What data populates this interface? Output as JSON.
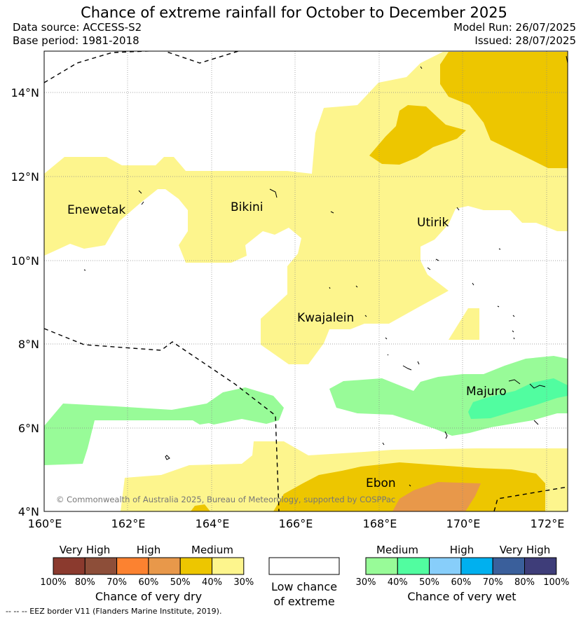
{
  "title": "Chance of extreme rainfall for October to December 2025",
  "header": {
    "data_source": "Data source: ACCESS-S2",
    "base_period": "Base period: 1981-2018",
    "model_run": "Model Run: 26/07/2025",
    "issued": "Issued: 28/07/2025"
  },
  "map": {
    "lat_ticks": [
      "14°N",
      "12°N",
      "10°N",
      "8°N",
      "6°N",
      "4°N"
    ],
    "lon_ticks": [
      "160°E",
      "162°E",
      "164°E",
      "166°E",
      "168°E",
      "170°E",
      "172°E"
    ],
    "places": [
      "Enewetak",
      "Bikini",
      "Utirik",
      "Kwajalein",
      "Majuro",
      "Ebon"
    ],
    "copyright": "© Commonwealth of Australia 2025, Bureau of Meteorology, supported by COSPPac"
  },
  "legend": {
    "dry": {
      "levels": [
        "Very High",
        "High",
        "Medium"
      ],
      "pcts": [
        "100%",
        "80%",
        "70%",
        "60%",
        "50%",
        "40%",
        "30%"
      ],
      "colors": [
        "#8b3a2e",
        "#8d4e39",
        "#fc8230",
        "#e8984a",
        "#edc600",
        "#fdf58d"
      ],
      "title": "Chance of very dry"
    },
    "low": {
      "line1": "Low chance",
      "line2": "of extreme"
    },
    "wet": {
      "levels": [
        "Medium",
        "High",
        "Very High"
      ],
      "pcts": [
        "30%",
        "40%",
        "50%",
        "60%",
        "70%",
        "80%",
        "100%"
      ],
      "colors": [
        "#98fb98",
        "#51fda0",
        "#87cefa",
        "#00b0ef",
        "#3a5f9b",
        "#3e3d79"
      ],
      "title": "Chance of very wet"
    }
  },
  "footer": {
    "eez_note": "--  --  -- EEZ border V11 (Flanders Marine Institute, 2019)."
  }
}
